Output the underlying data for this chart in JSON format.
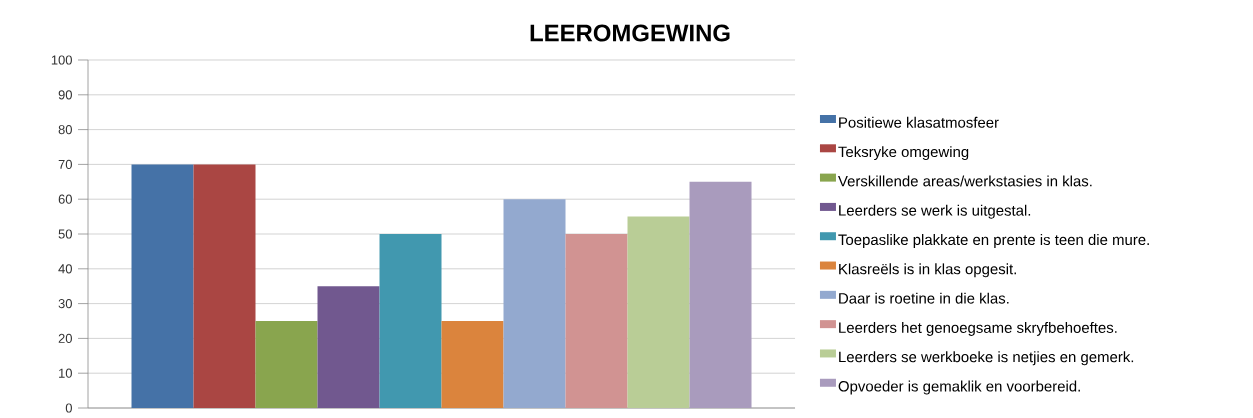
{
  "chart_data": {
    "type": "bar",
    "title": "LEEROMGEWING",
    "categories": [
      null
    ],
    "series": [
      {
        "name": "Positiewe klasatmosfeer",
        "color": "#4572a7",
        "values": [
          70
        ]
      },
      {
        "name": "Teksryke omgewing",
        "color": "#aa4643",
        "values": [
          70
        ]
      },
      {
        "name": "Verskillende areas/werkstasies in klas.",
        "color": "#89a54e",
        "values": [
          25
        ]
      },
      {
        "name": "Leerders se werk is uitgestal.",
        "color": "#71588f",
        "values": [
          35
        ]
      },
      {
        "name": "Toepaslike plakkate en prente is teen die mure.",
        "color": "#4198af",
        "values": [
          50
        ]
      },
      {
        "name": "Klasreëls is in klas opgesit.",
        "color": "#db843d",
        "values": [
          25
        ]
      },
      {
        "name": "Daar is roetine in die klas.",
        "color": "#93a9cf",
        "values": [
          60
        ]
      },
      {
        "name": "Leerders het genoegsame skryfbehoeftes.",
        "color": "#d19392",
        "values": [
          50
        ]
      },
      {
        "name": "Leerders se werkboeke is netjies en gemerk.",
        "color": "#b9cd96",
        "values": [
          55
        ]
      },
      {
        "name": "Opvoeder is gemaklik en voorbereid.",
        "color": "#a99bbd",
        "values": [
          65
        ]
      }
    ],
    "ylim": [
      0,
      100
    ],
    "yticks": [
      0,
      10,
      20,
      30,
      40,
      50,
      60,
      70,
      80,
      90,
      100
    ],
    "grid": "y",
    "legend": "right"
  }
}
